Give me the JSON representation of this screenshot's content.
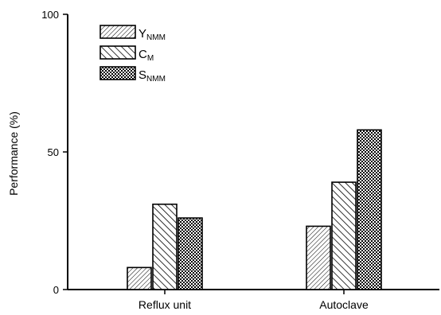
{
  "chart_data": {
    "type": "bar",
    "title": "",
    "xlabel": "",
    "ylabel": "Performance (%)",
    "ylim": [
      0,
      100
    ],
    "yticks": [
      0,
      50,
      100
    ],
    "categories": [
      "Reflux unit",
      "Autoclave"
    ],
    "series": [
      {
        "name": "Y",
        "subscript": "NMM",
        "values": [
          8,
          23
        ],
        "pattern": "hatch-fine-diagonal"
      },
      {
        "name": "C",
        "subscript": "M",
        "values": [
          31,
          39
        ],
        "pattern": "hatch-wide-diagonal"
      },
      {
        "name": "S",
        "subscript": "NMM",
        "values": [
          26,
          58
        ],
        "pattern": "crosshatch-dots"
      }
    ],
    "legend_position": "top-left",
    "grid": false,
    "colors": {
      "ink": "#000000",
      "background": "#ffffff"
    }
  }
}
